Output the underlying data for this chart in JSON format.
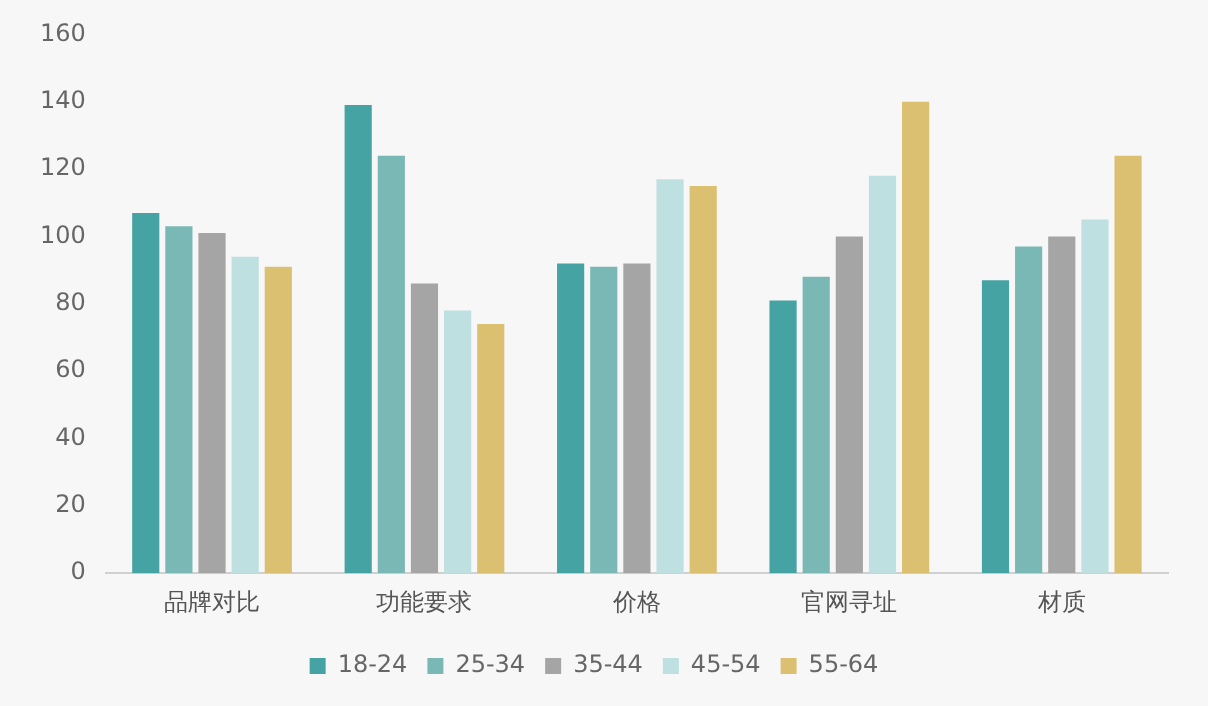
{
  "chart_data": {
    "type": "bar",
    "categories": [
      "品牌对比",
      "功能要求",
      "价格",
      "官网寻址",
      "材质"
    ],
    "series": [
      {
        "name": "18-24",
        "color": "#46a3a3",
        "values": [
          107,
          139,
          92,
          81,
          87
        ]
      },
      {
        "name": "25-34",
        "color": "#7ab8b5",
        "values": [
          103,
          124,
          91,
          88,
          97
        ]
      },
      {
        "name": "35-44",
        "color": "#a5a5a5",
        "values": [
          101,
          86,
          92,
          100,
          100
        ]
      },
      {
        "name": "45-54",
        "color": "#bfe0e0",
        "values": [
          94,
          78,
          117,
          118,
          105
        ]
      },
      {
        "name": "55-64",
        "color": "#dcc072",
        "values": [
          91,
          74,
          115,
          140,
          124
        ]
      }
    ],
    "ylim": [
      0,
      160
    ],
    "yticks": [
      0,
      20,
      40,
      60,
      80,
      100,
      120,
      140,
      160
    ],
    "grid": false,
    "legend": "bottom"
  }
}
